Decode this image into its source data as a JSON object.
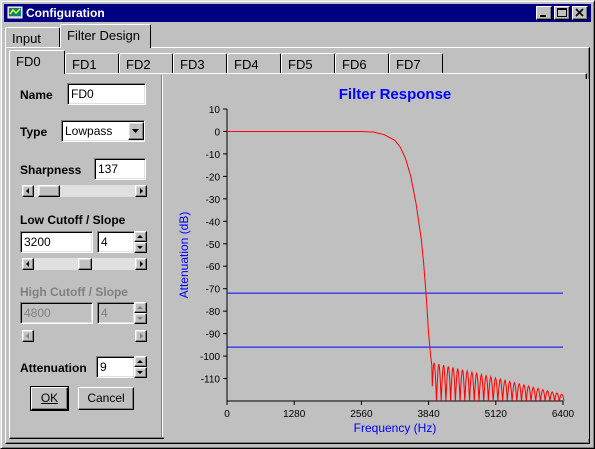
{
  "window": {
    "title": "Configuration",
    "title_bar_color": "#000080",
    "controls": [
      "minimize-icon",
      "maximize-icon",
      "close-icon"
    ]
  },
  "outer_tabs": [
    {
      "label": "Input",
      "active": false
    },
    {
      "label": "Filter Design",
      "active": true
    }
  ],
  "inner_tabs": [
    {
      "label": "FD0",
      "active": true
    },
    {
      "label": "FD1",
      "active": false
    },
    {
      "label": "FD2",
      "active": false
    },
    {
      "label": "FD3",
      "active": false
    },
    {
      "label": "FD4",
      "active": false
    },
    {
      "label": "FD5",
      "active": false
    },
    {
      "label": "FD6",
      "active": false
    },
    {
      "label": "FD7",
      "active": false
    }
  ],
  "form": {
    "name_label": "Name",
    "name_value": "FD0",
    "type_label": "Type",
    "type_value": "Lowpass",
    "sharpness_label": "Sharpness",
    "sharpness_value": "137",
    "sharpness_slider_fraction": 0.05,
    "low_cutoff_label": "Low Cutoff / Slope",
    "low_cutoff_value": "3200",
    "low_slope_value": "4",
    "low_cutoff_slider_fraction": 0.5,
    "high_cutoff_label": "High Cutoff / Slope",
    "high_cutoff_value": "4800",
    "high_slope_value": "4",
    "high_cutoff_enabled": false,
    "attenuation_label": "Attenuation",
    "attenuation_value": "9",
    "ok_label": "OK",
    "cancel_label": "Cancel"
  },
  "chart_data": {
    "type": "line",
    "title": "Filter Response",
    "xlabel": "Frequency (Hz)",
    "ylabel": "Attenuation (dB)",
    "xlim": [
      0,
      6400
    ],
    "ylim": [
      -120,
      10
    ],
    "x_ticks": [
      "0",
      "1280",
      "2560",
      "3840",
      "5120",
      "6400"
    ],
    "y_ticks": [
      "10",
      "0",
      "-10",
      "-20",
      "-30",
      "-40",
      "-50",
      "-60",
      "-70",
      "-80",
      "-90",
      "-100",
      "-110"
    ],
    "grid": false,
    "colors": {
      "response": "#ff0000",
      "reference_lines": "#0000ff",
      "title": "#0000ff",
      "axis_labels": "#0000ff"
    },
    "reference_lines": [
      -72,
      -96
    ],
    "series": [
      {
        "points": [
          [
            0,
            0
          ],
          [
            2560,
            0
          ],
          [
            2800,
            -0.3
          ],
          [
            3000,
            -1.5
          ],
          [
            3200,
            -4
          ],
          [
            3300,
            -7
          ],
          [
            3400,
            -12
          ],
          [
            3500,
            -20
          ],
          [
            3600,
            -32
          ],
          [
            3700,
            -48
          ],
          [
            3750,
            -60
          ],
          [
            3800,
            -75
          ],
          [
            3840,
            -90
          ],
          [
            3880,
            -100
          ],
          [
            3900,
            -104
          ]
        ],
        "ripple": {
          "x_start": 3900,
          "x_end": 6400,
          "lobe_width": 90,
          "peak_start": -103,
          "peak_end": -117,
          "floor": -120
        }
      }
    ]
  }
}
